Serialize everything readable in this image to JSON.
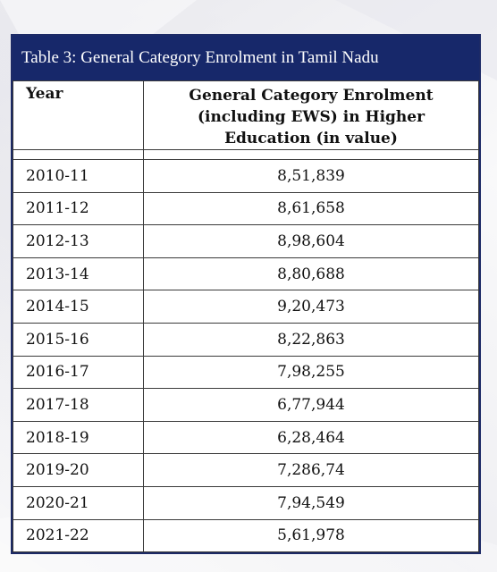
{
  "table": {
    "caption": "Table 3: General Category Enrolment in Tamil Nadu",
    "headers": {
      "year": "Year",
      "value_line1": "General Category Enrolment",
      "value_line2": "(including EWS) in Higher",
      "value_line3": "Education (in value)"
    },
    "rows": [
      {
        "year": "2010-11",
        "value": "8,51,839"
      },
      {
        "year": "2011-12",
        "value": "8,61,658"
      },
      {
        "year": "2012-13",
        "value": "8,98,604"
      },
      {
        "year": "2013-14",
        "value": "8,80,688"
      },
      {
        "year": "2014-15",
        "value": "9,20,473"
      },
      {
        "year": "2015-16",
        "value": "8,22,863"
      },
      {
        "year": "2016-17",
        "value": "7,98,255"
      },
      {
        "year": "2017-18",
        "value": "6,77,944"
      },
      {
        "year": "2018-19",
        "value": "6,28,464"
      },
      {
        "year": "2019-20",
        "value": "7,286,74"
      },
      {
        "year": "2020-21",
        "value": "7,94,549"
      },
      {
        "year": "2021-22",
        "value": "5,61,978"
      }
    ]
  },
  "colors": {
    "caption_background": "#17286a",
    "caption_text": "#ffffff",
    "border": "#3a3a3a"
  }
}
